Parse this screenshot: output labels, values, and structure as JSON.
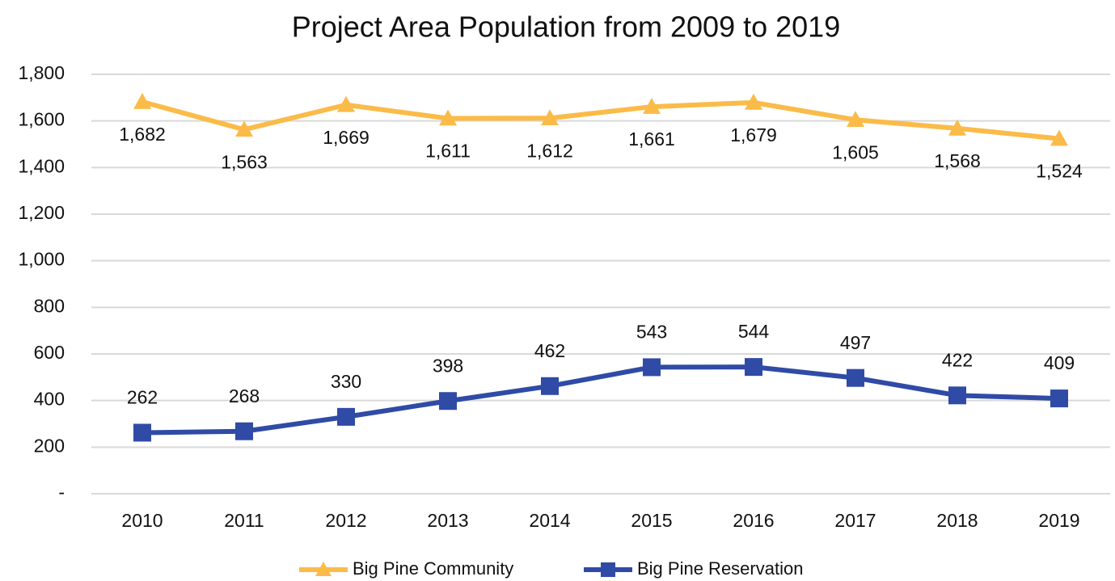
{
  "chart_data": {
    "type": "line",
    "title": "Project Area Population from 2009 to 2019",
    "categories": [
      "2010",
      "2011",
      "2012",
      "2013",
      "2014",
      "2015",
      "2016",
      "2017",
      "2018",
      "2019"
    ],
    "series": [
      {
        "name": "Big Pine Community",
        "color": "#fbbb48",
        "marker": "triangle",
        "values": [
          1682,
          1563,
          1669,
          1611,
          1612,
          1661,
          1679,
          1605,
          1568,
          1524
        ],
        "value_labels": [
          "1,682",
          "1,563",
          "1,669",
          "1,611",
          "1,612",
          "1,661",
          "1,679",
          "1,605",
          "1,568",
          "1,524"
        ]
      },
      {
        "name": "Big Pine Reservation",
        "color": "#2f4ba6",
        "marker": "square",
        "values": [
          262,
          268,
          330,
          398,
          462,
          543,
          544,
          497,
          422,
          409
        ]
      }
    ],
    "ylim": [
      0,
      1800
    ],
    "yticks": [
      {
        "value": 0,
        "label": "-"
      },
      200,
      400,
      600,
      800,
      {
        "value": 1000,
        "label": "1,000"
      },
      {
        "value": 1200,
        "label": "1,200"
      },
      {
        "value": 1400,
        "label": "1,400"
      },
      {
        "value": 1600,
        "label": "1,600"
      },
      {
        "value": 1800,
        "label": "1,800"
      }
    ],
    "grid": true,
    "legend": "bottom"
  }
}
